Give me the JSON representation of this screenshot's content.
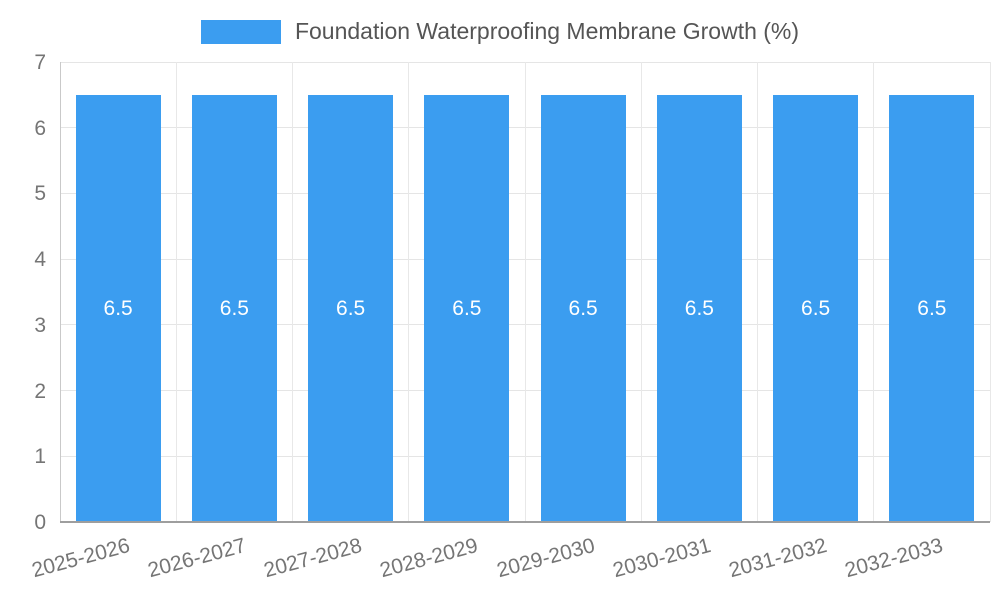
{
  "chart_data": {
    "type": "bar",
    "title": "Foundation Waterproofing Membrane Growth (%)",
    "categories": [
      "2025-2026",
      "2026-2027",
      "2027-2028",
      "2028-2029",
      "2029-2030",
      "2030-2031",
      "2031-2032",
      "2032-2033"
    ],
    "values": [
      6.5,
      6.5,
      6.5,
      6.5,
      6.5,
      6.5,
      6.5,
      6.5
    ],
    "bar_labels": [
      "6.5",
      "6.5",
      "6.5",
      "6.5",
      "6.5",
      "6.5",
      "6.5",
      "6.5"
    ],
    "xlabel": "",
    "ylabel": "",
    "ylim": [
      0,
      7
    ],
    "yticks": [
      0,
      1,
      2,
      3,
      4,
      5,
      6,
      7
    ],
    "grid": true,
    "legend_position": "top",
    "colors": {
      "bar": "#3B9DF0",
      "bar_label": "#ffffff",
      "axis_text": "#757575",
      "title_text": "#555555",
      "gridline": "#e5e5e5",
      "axis_line": "#9e9e9e"
    }
  }
}
